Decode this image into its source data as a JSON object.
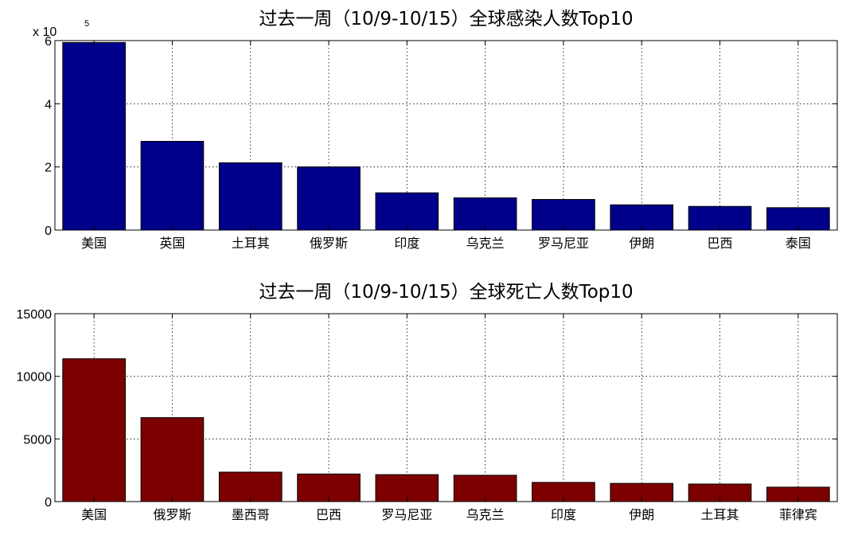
{
  "chart_data": [
    {
      "type": "bar",
      "title": "过去一周（10/9-10/15）全球感染人数Top10",
      "categories": [
        "美国",
        "英国",
        "土耳其",
        "俄罗斯",
        "印度",
        "乌克兰",
        "罗马尼亚",
        "伊朗",
        "巴西",
        "泰国"
      ],
      "values": [
        594000,
        281000,
        213000,
        200000,
        118000,
        102000,
        97000,
        80000,
        75000,
        71000
      ],
      "ylim": [
        0,
        600000
      ],
      "yticks": [
        0,
        200000,
        400000,
        600000
      ],
      "ytick_labels": [
        "0",
        "2",
        "4",
        "6"
      ],
      "y_multiplier": {
        "base": "x 10",
        "exponent": "5"
      },
      "color": "#00008b",
      "grid": true,
      "xlabel": "",
      "ylabel": ""
    },
    {
      "type": "bar",
      "title": "过去一周（10/9-10/15）全球死亡人数Top10",
      "categories": [
        "美国",
        "俄罗斯",
        "墨西哥",
        "巴西",
        "罗马尼亚",
        "乌克兰",
        "印度",
        "伊朗",
        "土耳其",
        "菲律宾"
      ],
      "values": [
        11400,
        6700,
        2350,
        2200,
        2150,
        2100,
        1530,
        1450,
        1400,
        1150
      ],
      "ylim": [
        0,
        15000
      ],
      "yticks": [
        0,
        5000,
        10000,
        15000
      ],
      "ytick_labels": [
        "0",
        "5000",
        "10000",
        "15000"
      ],
      "color": "#7d0000",
      "grid": true,
      "xlabel": "",
      "ylabel": ""
    }
  ]
}
